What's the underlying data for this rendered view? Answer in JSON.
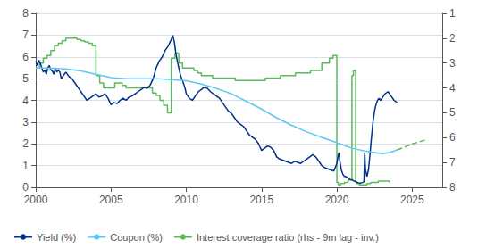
{
  "chart_data": {
    "type": "line",
    "xlim": [
      2000,
      2027
    ],
    "xticks": [
      2000,
      2005,
      2010,
      2015,
      2020,
      2025
    ],
    "ylim": [
      0,
      8
    ],
    "yticks": [
      0,
      1,
      2,
      3,
      4,
      5,
      6,
      7,
      8
    ],
    "y2lim": [
      8,
      1
    ],
    "y2ticks": [
      1,
      2,
      3,
      4,
      5,
      6,
      7,
      8
    ],
    "grid": true,
    "legend": "lower left",
    "series": [
      {
        "name": "Yield (%)",
        "color": "#003087",
        "line_style": "solid",
        "x": [
          2000.0,
          2000.1,
          2000.2,
          2000.3,
          2000.4,
          2000.5,
          2000.6,
          2000.7,
          2000.8,
          2000.9,
          2001.0,
          2001.1,
          2001.2,
          2001.3,
          2001.4,
          2001.5,
          2001.6,
          2001.7,
          2001.8,
          2001.9,
          2002.0,
          2002.2,
          2002.4,
          2002.6,
          2002.8,
          2003.0,
          2003.2,
          2003.4,
          2003.6,
          2003.8,
          2004.0,
          2004.2,
          2004.4,
          2004.6,
          2004.8,
          2005.0,
          2005.2,
          2005.4,
          2005.6,
          2005.8,
          2006.0,
          2006.2,
          2006.4,
          2006.6,
          2006.8,
          2007.0,
          2007.2,
          2007.4,
          2007.6,
          2007.8,
          2008.0,
          2008.2,
          2008.4,
          2008.6,
          2008.8,
          2009.0,
          2009.1,
          2009.2,
          2009.3,
          2009.4,
          2009.5,
          2009.6,
          2009.7,
          2009.8,
          2009.9,
          2010.0,
          2010.2,
          2010.4,
          2010.6,
          2010.8,
          2011.0,
          2011.2,
          2011.4,
          2011.6,
          2011.8,
          2012.0,
          2012.2,
          2012.4,
          2012.6,
          2012.8,
          2013.0,
          2013.2,
          2013.4,
          2013.6,
          2013.8,
          2014.0,
          2014.2,
          2014.4,
          2014.6,
          2014.8,
          2015.0,
          2015.2,
          2015.4,
          2015.6,
          2015.8,
          2016.0,
          2016.2,
          2016.4,
          2016.6,
          2016.8,
          2017.0,
          2017.2,
          2017.4,
          2017.6,
          2017.8,
          2018.0,
          2018.2,
          2018.4,
          2018.6,
          2018.8,
          2019.0,
          2019.2,
          2019.4,
          2019.6,
          2019.8,
          2020.0,
          2020.1,
          2020.15,
          2020.2,
          2020.3,
          2020.4,
          2020.5,
          2020.6,
          2020.7,
          2020.8,
          2020.9,
          2021.0,
          2021.1,
          2021.2,
          2021.3,
          2021.4,
          2021.5,
          2021.6,
          2021.7,
          2021.8,
          2021.85,
          2021.9,
          2022.0,
          2022.1,
          2022.2,
          2022.3,
          2022.4,
          2022.5,
          2022.6,
          2022.7,
          2022.8,
          2022.9,
          2023.0,
          2023.2,
          2023.4,
          2023.6,
          2023.8,
          2024.0
        ],
        "values": [
          5.8,
          5.6,
          5.85,
          5.7,
          5.5,
          5.3,
          5.4,
          5.2,
          5.5,
          5.6,
          5.4,
          5.35,
          5.2,
          5.5,
          5.3,
          5.4,
          5.3,
          5.0,
          5.1,
          5.2,
          5.3,
          5.1,
          5.0,
          4.8,
          4.6,
          4.4,
          4.2,
          4.0,
          4.1,
          4.2,
          4.3,
          4.15,
          4.2,
          4.3,
          4.1,
          3.8,
          3.9,
          3.85,
          4.0,
          4.1,
          4.0,
          4.15,
          4.2,
          4.3,
          4.4,
          4.5,
          4.6,
          4.55,
          4.7,
          5.0,
          5.5,
          5.8,
          6.0,
          6.3,
          6.5,
          6.8,
          7.0,
          6.7,
          6.2,
          5.8,
          5.5,
          5.2,
          5.0,
          4.8,
          4.6,
          4.3,
          4.1,
          4.0,
          4.2,
          4.4,
          4.5,
          4.6,
          4.55,
          4.4,
          4.3,
          4.2,
          4.1,
          3.9,
          3.7,
          3.5,
          3.4,
          3.2,
          3.0,
          2.9,
          2.8,
          2.6,
          2.4,
          2.3,
          2.2,
          2.0,
          1.7,
          1.8,
          1.9,
          1.85,
          1.7,
          1.4,
          1.3,
          1.25,
          1.2,
          1.15,
          1.1,
          1.2,
          1.15,
          1.1,
          1.2,
          1.3,
          1.4,
          1.5,
          1.4,
          1.2,
          1.0,
          0.9,
          0.85,
          0.8,
          0.75,
          1.1,
          1.5,
          1.6,
          1.2,
          0.8,
          0.6,
          0.5,
          0.5,
          0.45,
          0.4,
          0.35,
          0.35,
          0.3,
          0.28,
          0.25,
          0.22,
          0.2,
          0.2,
          0.22,
          0.25,
          1.6,
          0.8,
          0.5,
          0.8,
          1.5,
          2.3,
          3.0,
          3.5,
          3.8,
          4.0,
          4.1,
          4.0,
          4.1,
          4.3,
          4.4,
          4.2,
          4.0,
          3.9
        ]
      },
      {
        "name": "Coupon (%)",
        "color": "#5bc8f5",
        "line_style": "solid",
        "x": [
          2000.0,
          2001.0,
          2002.0,
          2003.0,
          2004.0,
          2005.0,
          2006.0,
          2007.0,
          2008.0,
          2009.0,
          2010.0,
          2011.0,
          2012.0,
          2013.0,
          2014.0,
          2015.0,
          2016.0,
          2017.0,
          2018.0,
          2019.0,
          2020.0,
          2021.0,
          2022.0,
          2022.5,
          2023.0,
          2023.5,
          2024.0
        ],
        "values": [
          5.5,
          5.48,
          5.45,
          5.35,
          5.2,
          5.05,
          5.0,
          5.0,
          5.0,
          4.95,
          4.9,
          4.75,
          4.55,
          4.3,
          3.95,
          3.6,
          3.2,
          2.85,
          2.55,
          2.3,
          2.05,
          1.8,
          1.65,
          1.6,
          1.55,
          1.6,
          1.72
        ]
      },
      {
        "color": "#5cb85c",
        "line_style": "dashed",
        "x": [
          2024.0,
          2024.5,
          2025.0,
          2025.5,
          2026.0
        ],
        "values": [
          1.72,
          1.85,
          2.0,
          2.1,
          2.2
        ]
      },
      {
        "name": "Interest coverage ratio (rhs - 9m lag - inv.)",
        "color": "#5cb85c",
        "line_style": "solid",
        "type": "step",
        "axis": "y2",
        "x": [
          2000.0,
          2000.25,
          2000.5,
          2000.75,
          2001.0,
          2001.25,
          2001.5,
          2001.75,
          2002.0,
          2002.25,
          2002.5,
          2002.75,
          2003.0,
          2003.25,
          2003.5,
          2003.75,
          2004.0,
          2004.25,
          2004.5,
          2004.75,
          2005.0,
          2005.25,
          2005.5,
          2005.75,
          2006.0,
          2006.25,
          2006.5,
          2006.75,
          2007.0,
          2007.25,
          2007.5,
          2007.75,
          2008.0,
          2008.25,
          2008.5,
          2008.75,
          2009.0,
          2009.25,
          2009.5,
          2009.75,
          2010.0,
          2010.25,
          2010.5,
          2010.75,
          2011.0,
          2011.25,
          2011.5,
          2011.75,
          2012.0,
          2012.25,
          2012.5,
          2012.75,
          2013.0,
          2013.25,
          2013.5,
          2013.75,
          2014.0,
          2014.25,
          2014.5,
          2014.75,
          2015.0,
          2015.25,
          2015.5,
          2015.75,
          2016.0,
          2016.25,
          2016.5,
          2016.75,
          2017.0,
          2017.25,
          2017.5,
          2017.75,
          2018.0,
          2018.25,
          2018.5,
          2018.75,
          2019.0,
          2019.25,
          2019.5,
          2019.75,
          2020.0,
          2020.1,
          2020.15,
          2020.2,
          2020.25,
          2020.5,
          2020.75,
          2021.0,
          2021.1,
          2021.2,
          2021.25,
          2021.3,
          2021.5,
          2021.75,
          2022.0,
          2022.25,
          2022.5,
          2022.75,
          2023.0,
          2023.25,
          2023.5
        ],
        "values": [
          3.2,
          3.0,
          2.8,
          2.7,
          2.5,
          2.3,
          2.2,
          2.1,
          2.0,
          2.0,
          2.0,
          2.05,
          2.1,
          2.15,
          2.2,
          2.3,
          3.5,
          3.8,
          4.0,
          4.0,
          4.0,
          3.8,
          3.8,
          3.9,
          4.0,
          4.0,
          4.0,
          4.0,
          4.0,
          4.0,
          4.0,
          4.2,
          4.3,
          4.5,
          4.7,
          5.0,
          2.8,
          2.6,
          3.0,
          3.2,
          3.2,
          3.2,
          3.3,
          3.4,
          3.5,
          3.5,
          3.5,
          3.6,
          3.6,
          3.6,
          3.6,
          3.6,
          3.6,
          3.7,
          3.7,
          3.7,
          3.7,
          3.7,
          3.7,
          3.7,
          3.7,
          3.6,
          3.6,
          3.6,
          3.6,
          3.5,
          3.5,
          3.5,
          3.5,
          3.4,
          3.4,
          3.4,
          3.4,
          3.3,
          3.3,
          3.3,
          3.0,
          3.0,
          2.8,
          2.7,
          7.8,
          7.9,
          7.95,
          7.9,
          7.85,
          7.8,
          7.7,
          3.5,
          3.3,
          3.3,
          7.8,
          7.85,
          7.9,
          7.9,
          7.85,
          7.8,
          7.8,
          7.75,
          7.75,
          7.75,
          7.8
        ]
      }
    ]
  }
}
